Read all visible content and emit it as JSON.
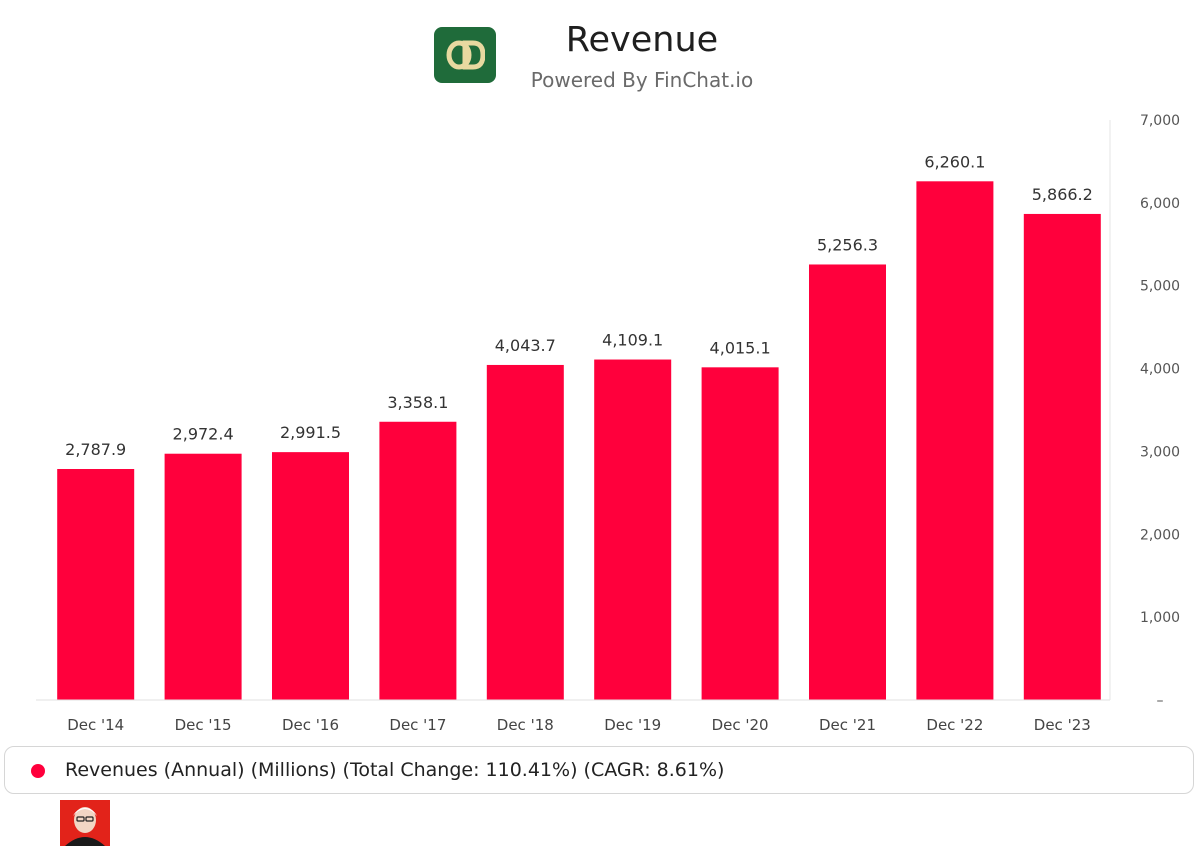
{
  "header": {
    "title": "Revenue",
    "subtitle": "Powered By FinChat.io",
    "logo_icon": "od-monogram-logo",
    "logo_color": "#1f6b3a"
  },
  "chart_data": {
    "type": "bar",
    "title": "Revenue",
    "categories": [
      "Dec '14",
      "Dec '15",
      "Dec '16",
      "Dec '17",
      "Dec '18",
      "Dec '19",
      "Dec '20",
      "Dec '21",
      "Dec '22",
      "Dec '23"
    ],
    "values": [
      2787.9,
      2972.4,
      2991.5,
      3358.1,
      4043.7,
      4109.1,
      4015.1,
      5256.3,
      6260.1,
      5866.2
    ],
    "value_labels": [
      "2,787.9",
      "2,972.4",
      "2,991.5",
      "3,358.1",
      "4,043.7",
      "4,109.1",
      "4,015.1",
      "5,256.3",
      "6,260.1",
      "5,866.2"
    ],
    "ylim": [
      0,
      7000
    ],
    "yticks": [
      0,
      1000,
      2000,
      3000,
      4000,
      5000,
      6000,
      7000
    ],
    "ytick_labels": [
      "–",
      "1,000",
      "2,000",
      "3,000",
      "4,000",
      "5,000",
      "6,000",
      "7,000"
    ],
    "y_axis_side": "right",
    "grid": false,
    "bar_color": "#ff003c",
    "legend_position": "bottom"
  },
  "legend": {
    "label": "Revenues (Annual) (Millions) (Total Change: 110.41%) (CAGR: 8.61%)",
    "color": "#ff003c"
  },
  "footer": {
    "avatar_icon": "investor-portrait-icon"
  }
}
